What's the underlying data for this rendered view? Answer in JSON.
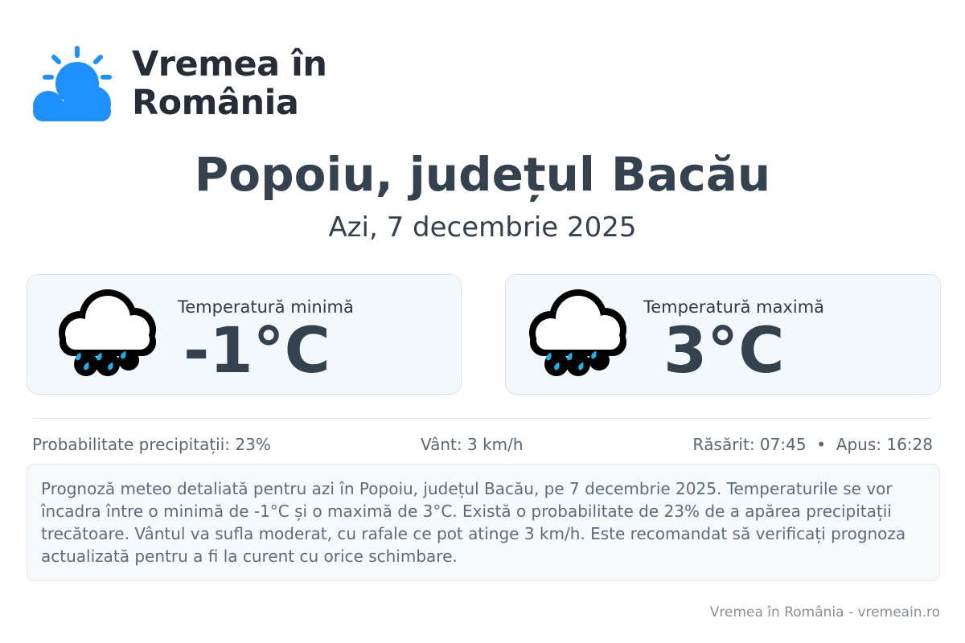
{
  "brand": {
    "name_line1": "Vremea în",
    "name_line2": "România",
    "color": "#1e90ff"
  },
  "location_title": "Popoiu, județul Bacău",
  "date_label": "Azi, 7 decembrie 2025",
  "cards": [
    {
      "label": "Temperatură minimă",
      "value": "-1°C",
      "icon": "rain-cloud-icon"
    },
    {
      "label": "Temperatură maximă",
      "value": "3°C",
      "icon": "rain-cloud-icon"
    }
  ],
  "info": {
    "precipitation": "Probabilitate precipitații: 23%",
    "wind": "Vânt: 3 km/h",
    "sun": "Răsărit: 07:45  •  Apus: 16:28"
  },
  "description": "Prognoză meteo detaliată pentru azi în Popoiu, județul Bacău, pe 7 decembrie 2025. Temperaturile se vor încadra între o minimă de -1°C și o maximă de 3°C. Există o probabilitate de 23% de a apărea precipitații trecătoare. Vântul va sufla moderat, cu rafale ce pot atinge 3 km/h. Este recomandat să verificați prognoza actualizată pentru a fi la curent cu orice schimbare.",
  "footer": "Vremea în România - vremeain.ro"
}
